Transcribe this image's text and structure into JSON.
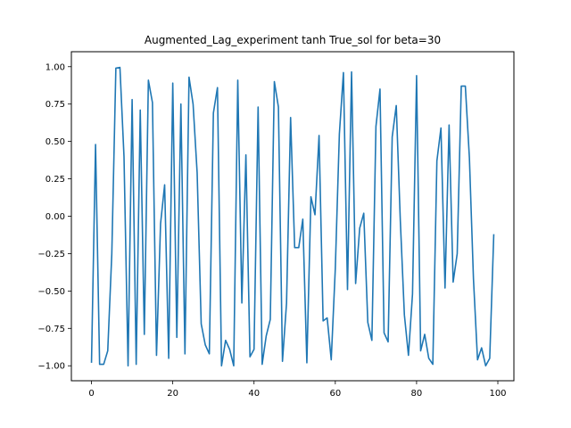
{
  "chart_data": {
    "type": "line",
    "title": "Augmented_Lag_experiment tanh True_sol for beta=30",
    "xlabel": "",
    "ylabel": "",
    "xlim": [
      -4.95,
      103.95
    ],
    "ylim": [
      -1.1,
      1.1
    ],
    "x_ticks": [
      0,
      20,
      40,
      60,
      80,
      100
    ],
    "y_ticks": [
      -1.0,
      -0.75,
      -0.5,
      -0.25,
      0.0,
      0.25,
      0.5,
      0.75,
      1.0
    ],
    "x_tick_labels": [
      "0",
      "20",
      "40",
      "60",
      "80",
      "100"
    ],
    "y_tick_labels": [
      "−1.00",
      "−0.75",
      "−0.50",
      "−0.25",
      "0.00",
      "0.25",
      "0.50",
      "0.75",
      "1.00"
    ],
    "grid": false,
    "series": [
      {
        "name": "True_sol",
        "color": "#1f77b4",
        "x": [
          0,
          1,
          2,
          3,
          4,
          5,
          6,
          7,
          8,
          9,
          10,
          11,
          12,
          13,
          14,
          15,
          16,
          17,
          18,
          19,
          20,
          21,
          22,
          23,
          24,
          25,
          26,
          27,
          28,
          29,
          30,
          31,
          32,
          33,
          34,
          35,
          36,
          37,
          38,
          39,
          40,
          41,
          42,
          43,
          44,
          45,
          46,
          47,
          48,
          49,
          50,
          51,
          52,
          53,
          54,
          55,
          56,
          57,
          58,
          59,
          60,
          61,
          62,
          63,
          64,
          65,
          66,
          67,
          68,
          69,
          70,
          71,
          72,
          73,
          74,
          75,
          76,
          77,
          78,
          79,
          80,
          81,
          82,
          83,
          84,
          85,
          86,
          87,
          88,
          89,
          90,
          91,
          92,
          93,
          94,
          95,
          96,
          97,
          98,
          99
        ],
        "values": [
          -0.98,
          0.48,
          -0.99,
          -0.99,
          -0.9,
          -0.25,
          0.99,
          0.995,
          0.4,
          -1.0,
          0.78,
          -0.99,
          0.71,
          -0.79,
          0.91,
          0.76,
          -0.93,
          -0.05,
          0.21,
          -0.95,
          0.89,
          -0.81,
          0.75,
          -0.92,
          0.93,
          0.75,
          0.29,
          -0.72,
          -0.86,
          -0.92,
          0.69,
          0.86,
          -1.0,
          -0.83,
          -0.89,
          -1.0,
          0.91,
          -0.58,
          0.41,
          -0.94,
          -0.89,
          0.73,
          -0.99,
          -0.8,
          -0.69,
          0.9,
          0.73,
          -0.97,
          -0.58,
          0.66,
          -0.21,
          -0.21,
          -0.02,
          -0.98,
          0.13,
          0.01,
          0.54,
          -0.7,
          -0.68,
          -0.96,
          -0.35,
          0.55,
          0.96,
          -0.49,
          0.965,
          -0.45,
          -0.08,
          0.02,
          -0.71,
          -0.83,
          0.6,
          0.85,
          -0.78,
          -0.84,
          0.53,
          0.74,
          -0.03,
          -0.66,
          -0.93,
          -0.52,
          0.94,
          -0.9,
          -0.79,
          -0.95,
          -0.99,
          0.37,
          0.59,
          -0.48,
          0.61,
          -0.44,
          -0.25,
          0.87,
          0.87,
          0.39,
          -0.42,
          -0.96,
          -0.88,
          -1.0,
          -0.95,
          -0.12
        ]
      }
    ]
  }
}
